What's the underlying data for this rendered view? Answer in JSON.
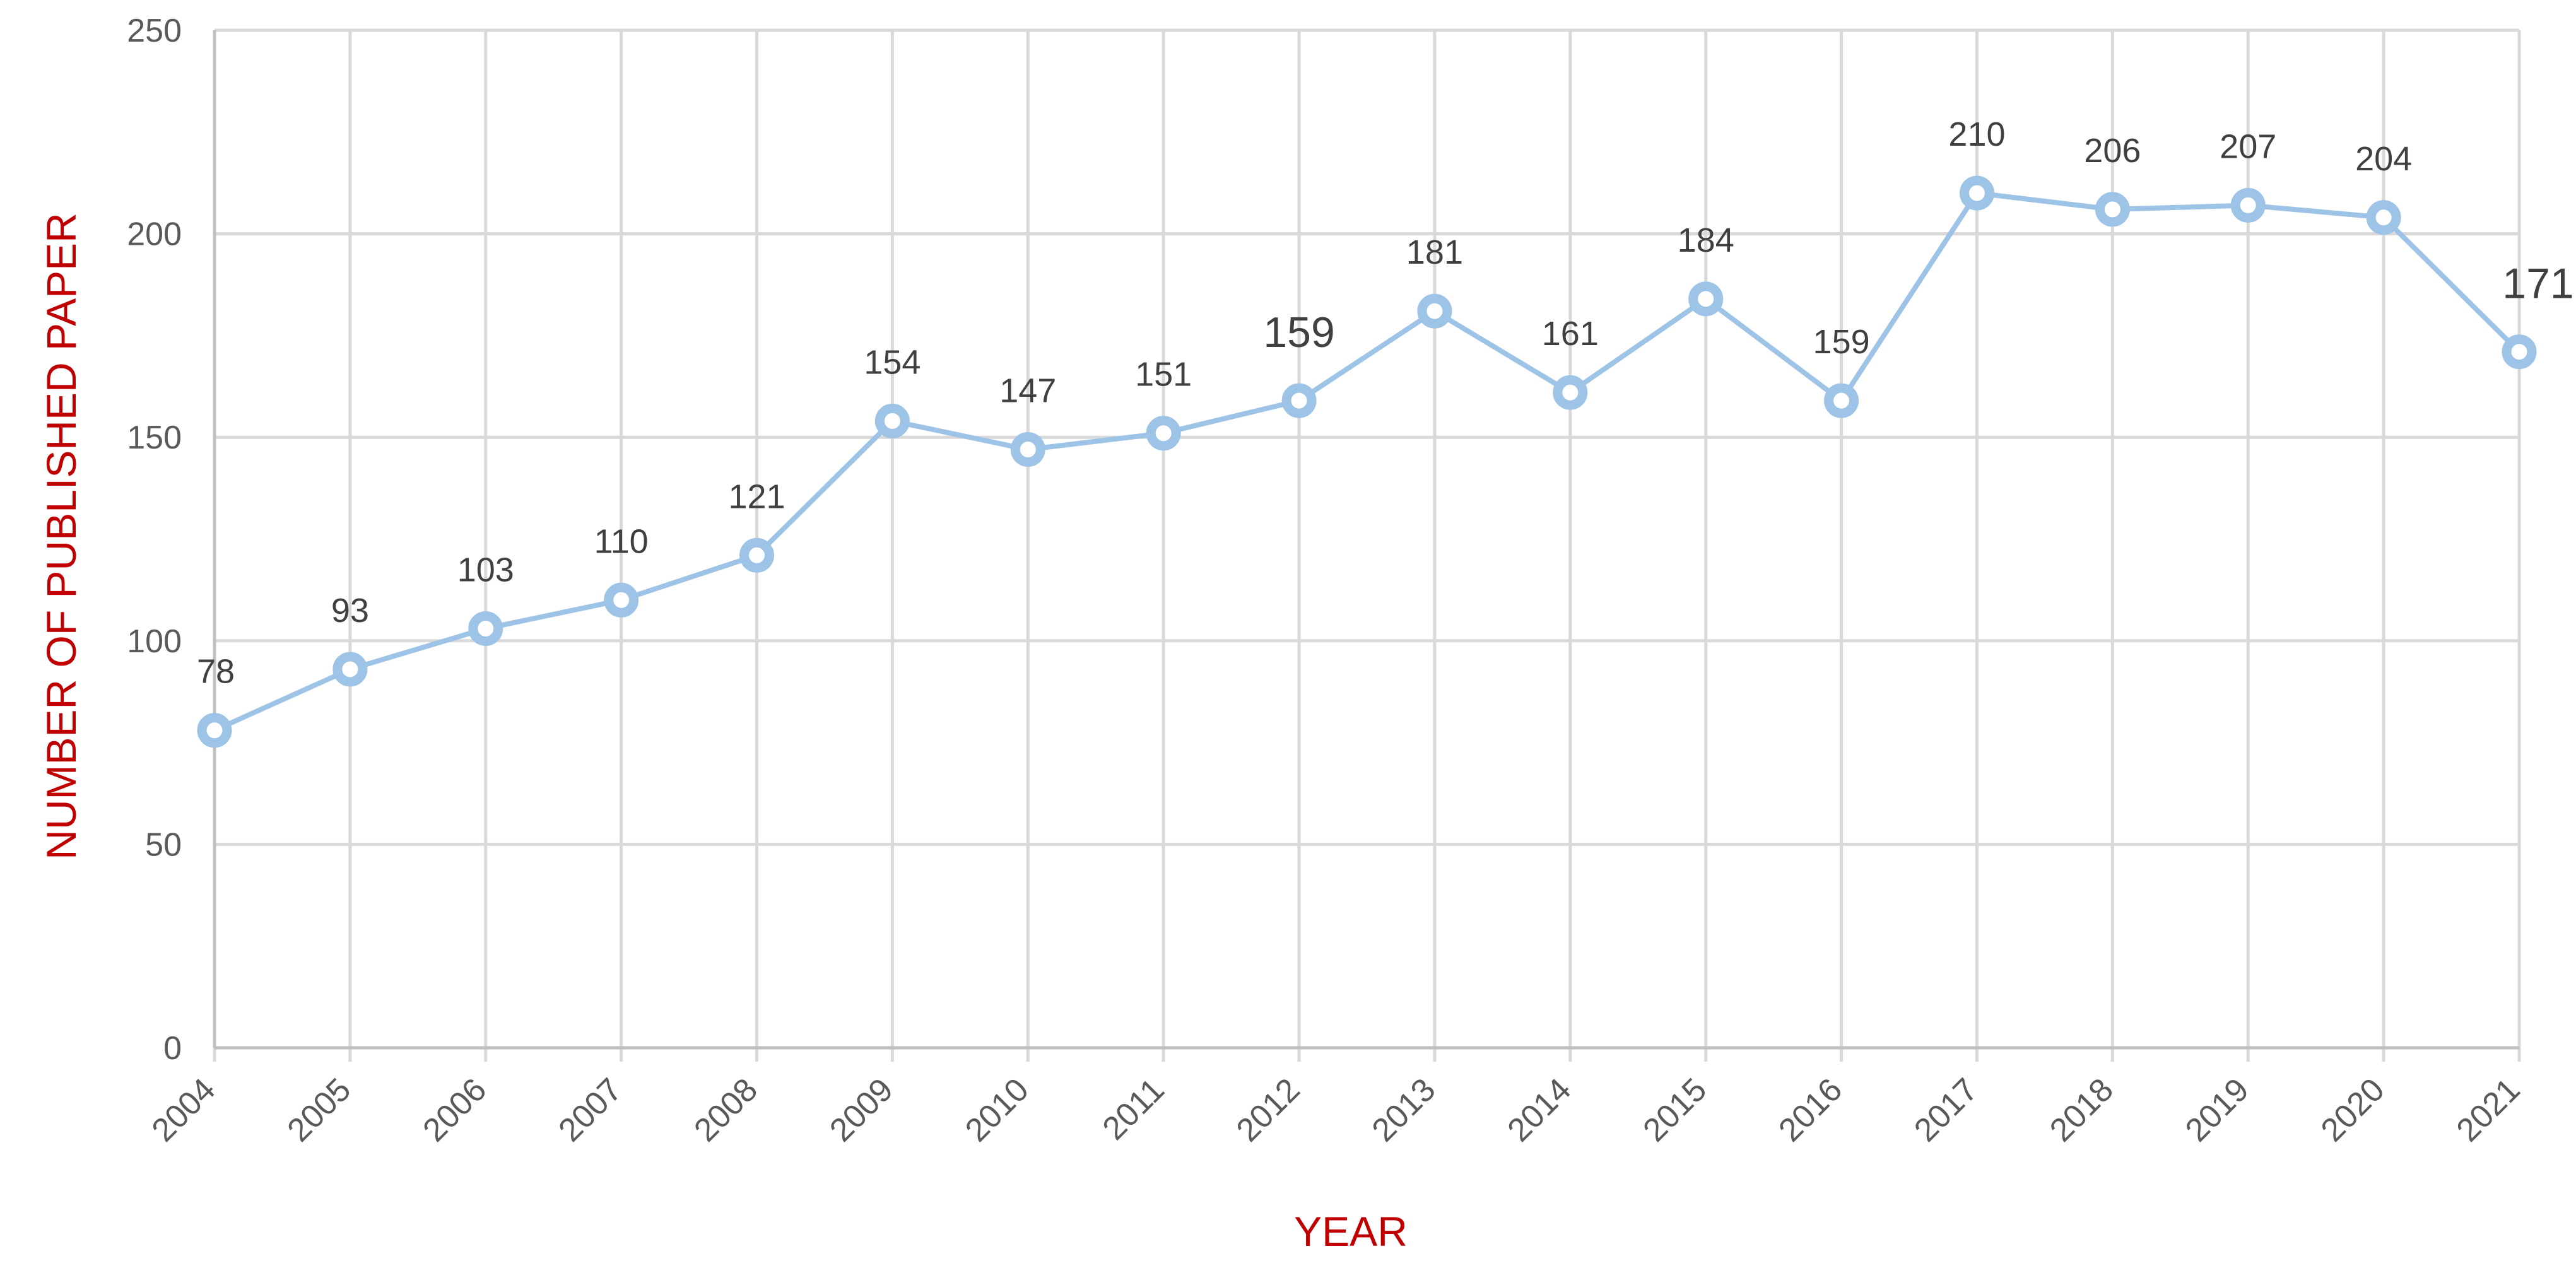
{
  "chart_data": {
    "type": "line",
    "categories": [
      "2004",
      "2005",
      "2006",
      "2007",
      "2008",
      "2009",
      "2010",
      "2011",
      "2012",
      "2013",
      "2014",
      "2015",
      "2016",
      "2017",
      "2018",
      "2019",
      "2020",
      "2021"
    ],
    "series": [
      {
        "values": [
          78,
          93,
          103,
          110,
          121,
          154,
          147,
          151,
          159,
          181,
          161,
          184,
          159,
          210,
          206,
          207,
          204,
          171
        ],
        "data_labels": [
          "78",
          "93",
          "103",
          "110",
          "121",
          "154",
          "147",
          "151",
          "159",
          "181",
          "161",
          "184",
          "159",
          "210",
          "206",
          "207",
          "204",
          "171"
        ],
        "color": "#9dc3e6"
      }
    ],
    "xlabel": "YEAR",
    "ylabel": "NUMBER OF PUBLISHED PAPER",
    "ylim": [
      0,
      250
    ],
    "yticks": [
      "0",
      "50",
      "100",
      "150",
      "200",
      "250"
    ],
    "grid": true,
    "legend": "none",
    "emphasized_labels": [
      8,
      17
    ]
  }
}
